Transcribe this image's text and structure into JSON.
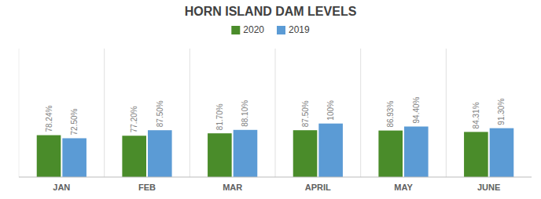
{
  "chart_data": {
    "type": "bar",
    "title": "HORN ISLAND DAM LEVELS",
    "categories": [
      "JAN",
      "FEB",
      "MAR",
      "APRIL",
      "MAY",
      "JUNE"
    ],
    "series": [
      {
        "name": "2020",
        "color": "#4a8c2a",
        "values": [
          78.24,
          77.2,
          81.7,
          87.5,
          86.93,
          84.31
        ],
        "value_labels": [
          "78.24%",
          "77.20%",
          "81.70%",
          "87.50%",
          "86.93%",
          "84.31%"
        ]
      },
      {
        "name": "2019",
        "color": "#5b9bd5",
        "values": [
          72.5,
          87.5,
          88.1,
          100.0,
          94.4,
          91.3
        ],
        "value_labels": [
          "72.50%",
          "87.50%",
          "88.10%",
          "100%",
          "94.40%",
          "91.30%"
        ]
      }
    ],
    "ylim": [
      0,
      240
    ],
    "data_labels": true,
    "tick_labels": "x",
    "legend": "top"
  }
}
